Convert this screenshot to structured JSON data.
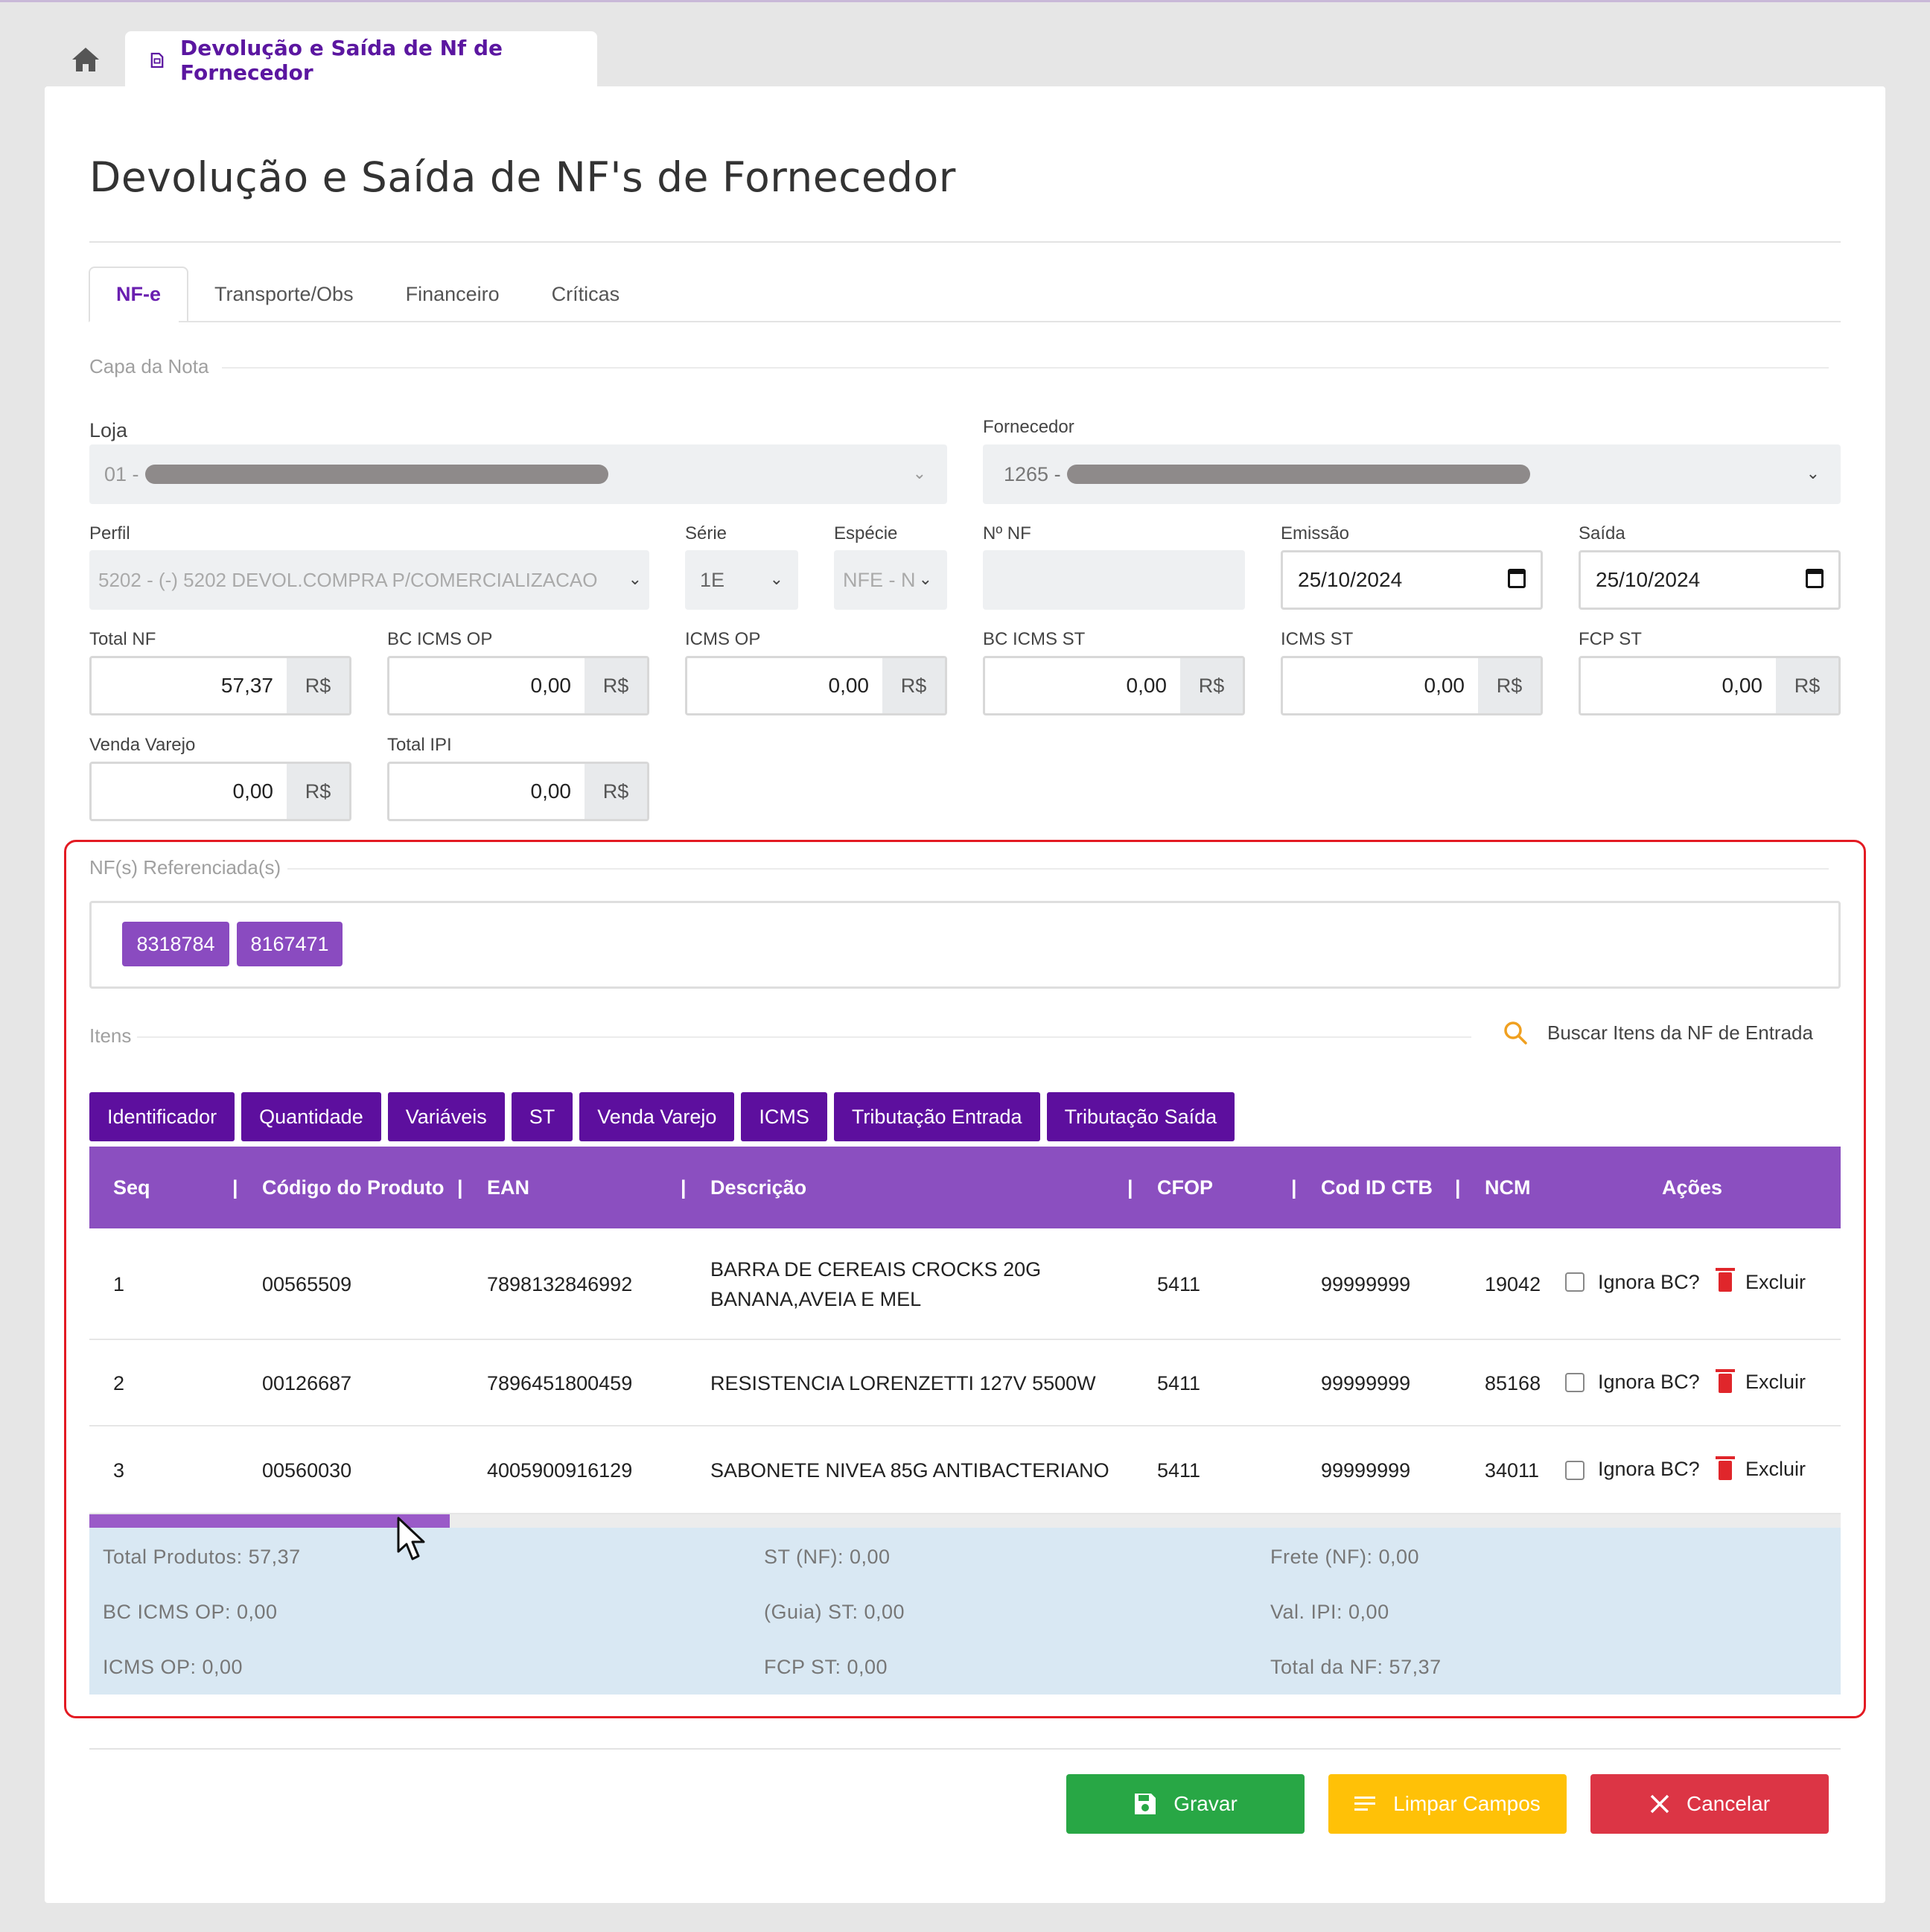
{
  "tabs": {
    "home_icon": "home-icon",
    "page_tab_icon": "document-icon",
    "page_tab_label": "Devolução e Saída de Nf de Fornecedor"
  },
  "page": {
    "title": "Devolução e Saída de NF's de Fornecedor"
  },
  "subtabs": [
    "NF-e",
    "Transporte/Obs",
    "Financeiro",
    "Críticas"
  ],
  "capa": {
    "legend": "Capa da Nota",
    "loja": {
      "label": "Loja",
      "value": "01 -"
    },
    "fornecedor": {
      "label": "Fornecedor",
      "value": "1265 -"
    },
    "perfil": {
      "label": "Perfil",
      "value": "5202 - (-) 5202  DEVOL.COMPRA P/COMERCIALIZACAO"
    },
    "serie": {
      "label": "Série",
      "value": "1E"
    },
    "especie": {
      "label": "Espécie",
      "value": "NFE - N"
    },
    "nro_nf": {
      "label": "Nº NF",
      "value": ""
    },
    "emissao": {
      "label": "Emissão",
      "value": "25/10/2024"
    },
    "saida": {
      "label": "Saída",
      "value": "25/10/2024"
    },
    "currency": "R$",
    "total_nf": {
      "label": "Total NF",
      "value": "57,37"
    },
    "bc_icms_op": {
      "label": "BC ICMS OP",
      "value": "0,00"
    },
    "icms_op": {
      "label": "ICMS OP",
      "value": "0,00"
    },
    "bc_icms_st": {
      "label": "BC ICMS ST",
      "value": "0,00"
    },
    "icms_st": {
      "label": "ICMS ST",
      "value": "0,00"
    },
    "fcp_st": {
      "label": "FCP ST",
      "value": "0,00"
    },
    "venda_varejo": {
      "label": "Venda Varejo",
      "value": "0,00"
    },
    "total_ipi": {
      "label": "Total IPI",
      "value": "0,00"
    }
  },
  "referenciadas": {
    "legend": "NF(s) Referenciada(s)",
    "chips": [
      "8318784",
      "8167471"
    ]
  },
  "itens": {
    "legend": "Itens",
    "buscar_label": "Buscar Itens da NF de Entrada",
    "column_buttons": [
      "Identificador",
      "Quantidade",
      "Variáveis",
      "ST",
      "Venda Varejo",
      "ICMS",
      "Tributação Entrada",
      "Tributação Saída"
    ],
    "headers": {
      "seq": "Seq",
      "codigo": "Código do Produto",
      "ean": "EAN",
      "descricao": "Descrição",
      "cfop": "CFOP",
      "cod_id_ctb": "Cod ID CTB",
      "ncm": "NCM",
      "acoes": "Ações"
    },
    "rows": [
      {
        "seq": "1",
        "codigo": "00565509",
        "ean": "7898132846992",
        "descricao": "BARRA DE CEREAIS CROCKS 20G BANANA,AVEIA E MEL",
        "cfop": "5411",
        "cod_id_ctb": "99999999",
        "ncm": "19042",
        "ignora": "Ignora BC?",
        "excluir": "Excluir"
      },
      {
        "seq": "2",
        "codigo": "00126687",
        "ean": "7896451800459",
        "descricao": "RESISTENCIA LORENZETTI 127V 5500W",
        "cfop": "5411",
        "cod_id_ctb": "99999999",
        "ncm": "85168",
        "ignora": "Ignora BC?",
        "excluir": "Excluir"
      },
      {
        "seq": "3",
        "codigo": "00560030",
        "ean": "4005900916129",
        "descricao": "SABONETE NIVEA 85G ANTIBACTERIANO",
        "cfop": "5411",
        "cod_id_ctb": "99999999",
        "ncm": "34011",
        "ignora": "Ignora BC?",
        "excluir": "Excluir"
      }
    ]
  },
  "totais": {
    "total_produtos": "Total Produtos: 57,37",
    "bc_icms_op": "BC ICMS OP: 0,00",
    "icms_op": "ICMS OP: 0,00",
    "st_nf": "ST (NF): 0,00",
    "guia_st": "(Guia) ST: 0,00",
    "fcp_st": "FCP ST: 0,00",
    "frete_nf": "Frete (NF): 0,00",
    "val_ipi": "Val. IPI: 0,00",
    "total_nf": "Total da NF: 57,37"
  },
  "actions": {
    "gravar": "Gravar",
    "limpar": "Limpar Campos",
    "cancelar": "Cancelar"
  },
  "colors": {
    "primary": "#5d0f9e",
    "header": "#8b4fc0",
    "chip": "#8a4bc0",
    "gravar": "#28a745",
    "limpar": "#ffc107",
    "cancelar": "#dc3545",
    "highlight": "#e31b23"
  }
}
